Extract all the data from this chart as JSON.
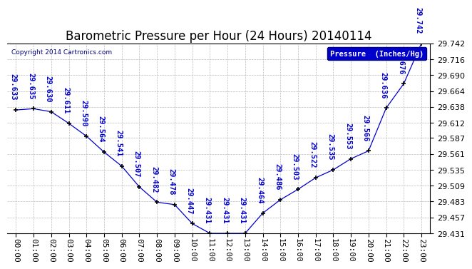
{
  "title": "Barometric Pressure per Hour (24 Hours) 20140114",
  "copyright": "Copyright 2014 Cartronics.com",
  "legend_label": "Pressure  (Inches/Hg)",
  "hours": [
    0,
    1,
    2,
    3,
    4,
    5,
    6,
    7,
    8,
    9,
    10,
    11,
    12,
    13,
    14,
    15,
    16,
    17,
    18,
    19,
    20,
    21,
    22,
    23
  ],
  "values": [
    29.633,
    29.635,
    29.63,
    29.611,
    29.59,
    29.564,
    29.541,
    29.507,
    29.482,
    29.478,
    29.447,
    29.431,
    29.431,
    29.431,
    29.464,
    29.486,
    29.503,
    29.522,
    29.535,
    29.553,
    29.566,
    29.636,
    29.676,
    29.742
  ],
  "ylim_min": 29.431,
  "ylim_max": 29.742,
  "line_color": "#0000CD",
  "marker_color": "#000000",
  "background_color": "#ffffff",
  "grid_color": "#bbbbbb",
  "title_color": "#000000",
  "label_color": "#0000CD",
  "yticks": [
    29.431,
    29.457,
    29.483,
    29.509,
    29.535,
    29.561,
    29.587,
    29.612,
    29.638,
    29.664,
    29.69,
    29.716,
    29.742
  ],
  "title_fontsize": 12,
  "label_fontsize": 7.5,
  "tick_fontsize": 8,
  "copyright_fontsize": 6.5
}
